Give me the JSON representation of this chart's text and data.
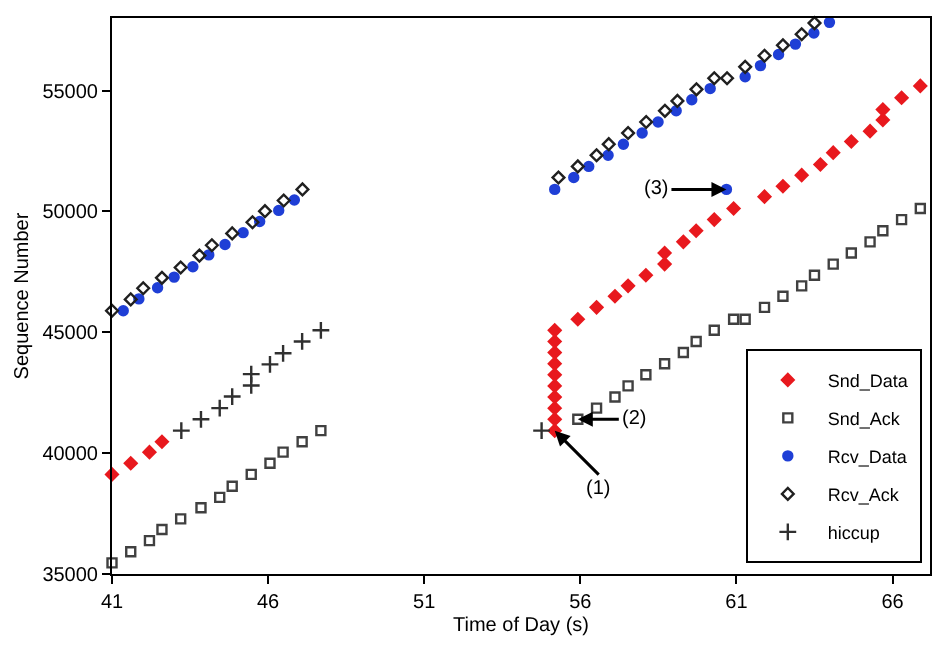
{
  "chart_data": {
    "type": "scatter",
    "xlabel": "Time of Day (s)",
    "ylabel": "Sequence Number",
    "xlim": [
      41,
      67.2
    ],
    "xticks": [
      41,
      46,
      51,
      56,
      61,
      66
    ],
    "ylim": [
      35000,
      58000
    ],
    "yticks": [
      35000,
      40000,
      45000,
      50000,
      55000
    ],
    "legend": "bottom right",
    "series": [
      {
        "name": "Snd_Data",
        "color": "#e8191e",
        "marker": "diamond",
        "x": [
          41,
          41.6,
          42.2,
          42.6,
          55.18,
          55.18,
          55.18,
          55.18,
          55.18,
          55.18,
          55.18,
          55.18,
          55.18,
          55.18,
          55.92,
          56.52,
          57.11,
          57.53,
          58.1,
          58.7,
          58.7,
          59.3,
          59.71,
          60.29,
          60.91,
          61.9,
          62.49,
          63.09,
          63.69,
          64.1,
          64.68,
          65.28,
          65.69,
          65.69,
          66.29,
          66.89
        ],
        "values": [
          39120,
          39580,
          40040,
          40470,
          40930,
          41400,
          41860,
          42320,
          42780,
          43240,
          43700,
          44160,
          44620,
          45080,
          45540,
          46030,
          46490,
          46920,
          47360,
          47820,
          48280,
          48740,
          49200,
          49660,
          50120,
          50610,
          51040,
          51500,
          51940,
          52430,
          52890,
          53320,
          53780,
          54210,
          54700,
          55190
        ]
      },
      {
        "name": "Snd_Ack",
        "color": "#404040",
        "marker": "square-open",
        "x": [
          41,
          41.6,
          42.2,
          42.6,
          43.2,
          43.85,
          44.45,
          44.85,
          45.46,
          46.06,
          46.48,
          47.09,
          47.69,
          55.92,
          56.52,
          57.11,
          57.53,
          58.1,
          58.7,
          59.3,
          59.71,
          60.29,
          60.91,
          61.28,
          61.9,
          62.49,
          63.09,
          63.5,
          64.1,
          64.68,
          65.28,
          65.69,
          66.29,
          66.89
        ],
        "values": [
          35460,
          35920,
          36380,
          36840,
          37280,
          37740,
          38170,
          38630,
          39120,
          39580,
          40040,
          40470,
          40930,
          41400,
          41860,
          42320,
          42780,
          43240,
          43700,
          44160,
          44620,
          45080,
          45540,
          45540,
          46030,
          46490,
          46920,
          47360,
          47820,
          48280,
          48740,
          49200,
          49660,
          50120
        ]
      },
      {
        "name": "Rcv_Data",
        "color": "#1f3fd6",
        "marker": "circle",
        "x": [
          41.36,
          41.86,
          42.46,
          42.99,
          43.59,
          44.1,
          44.62,
          45.2,
          45.73,
          46.34,
          46.84,
          55.18,
          55.79,
          56.27,
          56.89,
          57.38,
          57.98,
          58.49,
          59.07,
          59.57,
          60.16,
          60.68,
          61.28,
          61.77,
          62.35,
          62.89,
          63.48,
          63.98
        ],
        "values": [
          45890,
          46380,
          46840,
          47280,
          47710,
          48200,
          48630,
          49120,
          49580,
          50040,
          50470,
          50910,
          51400,
          51860,
          52320,
          52780,
          53240,
          53700,
          54160,
          54620,
          55080,
          50910,
          55570,
          56030,
          56490,
          56920,
          57380,
          57820
        ]
      },
      {
        "name": "Rcv_Ack",
        "color": "#202020",
        "marker": "diamond-open",
        "x": [
          41,
          41.6,
          42,
          42.6,
          43.2,
          43.8,
          44.2,
          44.85,
          45.5,
          45.9,
          46.5,
          47.1,
          55.3,
          55.92,
          56.52,
          56.91,
          57.53,
          58.11,
          58.71,
          59.11,
          59.72,
          60.29,
          60.7,
          61.28,
          61.9,
          62.49,
          63.09,
          63.5
        ],
        "values": [
          45890,
          46360,
          46820,
          47250,
          47680,
          48170,
          48600,
          49090,
          49550,
          50010,
          50450,
          50910,
          51400,
          51860,
          52320,
          52780,
          53240,
          53700,
          54160,
          54570,
          55050,
          55510,
          55510,
          55980,
          56440,
          56870,
          57330,
          57790
        ]
      },
      {
        "name": "hiccup",
        "color": "#303030",
        "marker": "cross",
        "x": [
          43.22,
          43.85,
          44.45,
          44.85,
          45.46,
          45.46,
          46.06,
          46.48,
          47.09,
          47.69,
          54.76
        ],
        "values": [
          40930,
          41400,
          41860,
          42340,
          42800,
          43270,
          43670,
          44130,
          44620,
          45080,
          40930
        ]
      }
    ],
    "annotations": [
      {
        "text": "(1)",
        "x": 55.18,
        "y": 40930
      },
      {
        "text": "(2)",
        "x": 55.92,
        "y": 41400
      },
      {
        "text": "(3)",
        "x": 60.68,
        "y": 50910
      }
    ]
  }
}
